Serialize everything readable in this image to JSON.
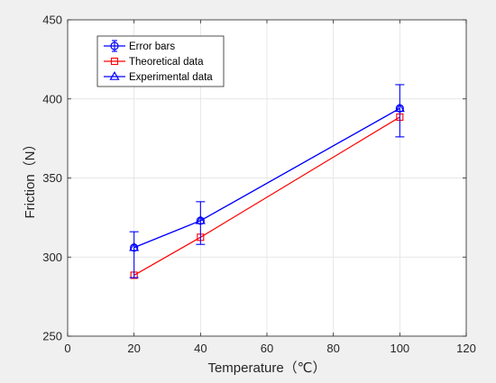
{
  "chart_data": {
    "type": "line",
    "title": "",
    "xlabel": "Temperature（℃）",
    "ylabel": "Friction（N）",
    "xlim": [
      0,
      120
    ],
    "ylim": [
      250,
      450
    ],
    "xticks": [
      0,
      20,
      40,
      60,
      80,
      100,
      120
    ],
    "yticks": [
      250,
      300,
      350,
      400,
      450
    ],
    "grid": true,
    "legend_position": "top-left",
    "series": [
      {
        "name": "Error bars",
        "kind": "errorbar",
        "marker": "circle",
        "color": "#0000ff",
        "x": [
          20,
          40,
          100
        ],
        "y": [
          306,
          323,
          394
        ],
        "y_low": [
          287,
          308,
          376
        ],
        "y_high": [
          316,
          335,
          409
        ]
      },
      {
        "name": "Theoretical data",
        "kind": "line",
        "marker": "square",
        "color": "#ff0000",
        "x": [
          20,
          40,
          100
        ],
        "y": [
          288.5,
          312.5,
          388.5
        ]
      },
      {
        "name": "Experimental data",
        "kind": "line",
        "marker": "triangle",
        "color": "#0000ff",
        "x": [
          20,
          40,
          100
        ],
        "y": [
          306,
          323,
          394
        ]
      }
    ]
  }
}
